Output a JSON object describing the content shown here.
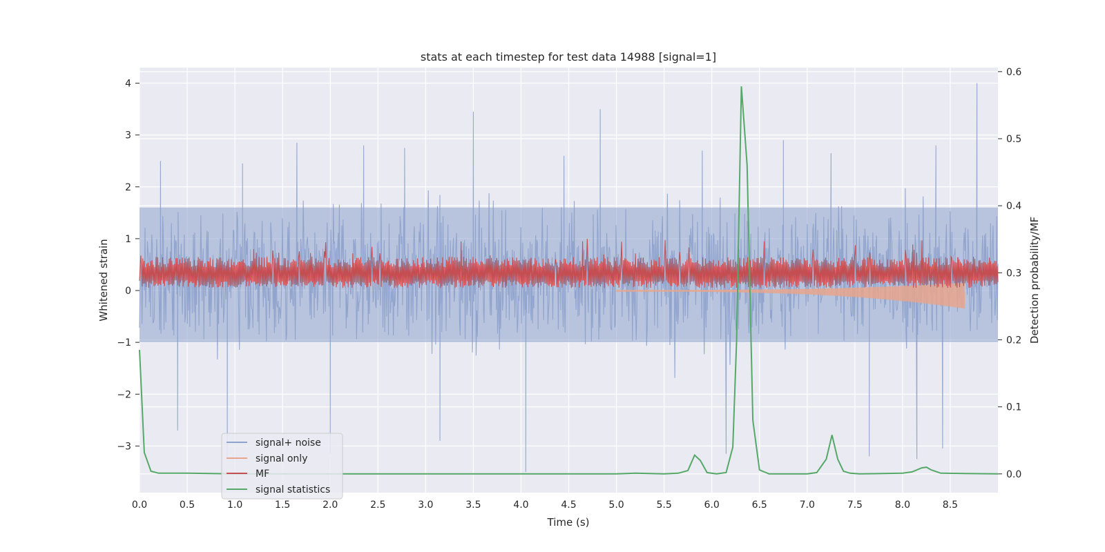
{
  "chart_data": {
    "type": "line",
    "title": "stats at each timestep for test data 14988 [signal=1]",
    "xlabel": "Time (s)",
    "ylabel": "Whitened strain",
    "y2label": "Detection probability/MF",
    "xlim": [
      0,
      9.0
    ],
    "ylim": [
      -3.9,
      4.3
    ],
    "y2lim": [
      -0.028,
      0.606
    ],
    "x_ticks": [
      "0.0",
      "0.5",
      "1.0",
      "1.5",
      "2.0",
      "2.5",
      "3.0",
      "3.5",
      "4.0",
      "4.5",
      "5.0",
      "5.5",
      "6.0",
      "6.5",
      "7.0",
      "7.5",
      "8.0",
      "8.5"
    ],
    "y_ticks": [
      "4",
      "3",
      "2",
      "1",
      "0",
      "−1",
      "−2",
      "−3"
    ],
    "y2_ticks": [
      "0.6",
      "0.5",
      "0.4",
      "0.3",
      "0.2",
      "0.1",
      "0.0"
    ],
    "grid": true,
    "legend_position": "lower-left",
    "colors": {
      "background": "#eaeaf2",
      "signal_noise": "#8ea3cc",
      "signal_only": "#e8a48c",
      "mf": "#c44e52",
      "statistics": "#55a868"
    },
    "series": [
      {
        "name": "signal+ noise",
        "axis": "left",
        "envelope": {
          "x_range": [
            0,
            9.0
          ],
          "typical_low": -1.0,
          "typical_high": 1.6,
          "peaks": [
            {
              "x": 0.22,
              "y": 2.5
            },
            {
              "x": 1.08,
              "y": 2.45
            },
            {
              "x": 1.65,
              "y": 2.85
            },
            {
              "x": 2.35,
              "y": 2.8
            },
            {
              "x": 2.78,
              "y": 2.75
            },
            {
              "x": 3.5,
              "y": 3.45
            },
            {
              "x": 4.45,
              "y": 2.6
            },
            {
              "x": 4.83,
              "y": 3.5
            },
            {
              "x": 5.9,
              "y": 2.7
            },
            {
              "x": 6.75,
              "y": 2.9
            },
            {
              "x": 7.25,
              "y": 2.65
            },
            {
              "x": 8.35,
              "y": 2.8
            },
            {
              "x": 8.78,
              "y": 4.0
            }
          ],
          "troughs": [
            {
              "x": 0.4,
              "y": -2.7
            },
            {
              "x": 0.92,
              "y": -3.25
            },
            {
              "x": 2.0,
              "y": -3.15
            },
            {
              "x": 3.15,
              "y": -2.9
            },
            {
              "x": 4.05,
              "y": -3.5
            },
            {
              "x": 6.15,
              "y": -3.15
            },
            {
              "x": 7.65,
              "y": -3.2
            },
            {
              "x": 8.15,
              "y": -3.25
            },
            {
              "x": 8.42,
              "y": -3.05
            }
          ]
        }
      },
      {
        "name": "signal only",
        "axis": "left",
        "chirp": {
          "x_range": [
            5.0,
            8.65
          ],
          "amplitude_start": 0.03,
          "amplitude_end": 0.5
        }
      },
      {
        "name": "MF",
        "axis": "left",
        "band": {
          "x_range": [
            0,
            9.0
          ],
          "typical_low": 0.05,
          "typical_high": 0.6,
          "peak_high": 1.0
        }
      },
      {
        "name": "signal statistics",
        "axis": "right",
        "x": [
          0.0,
          0.05,
          0.12,
          0.2,
          0.5,
          1.0,
          2.0,
          3.0,
          4.0,
          5.0,
          5.2,
          5.5,
          5.65,
          5.75,
          5.82,
          5.88,
          5.95,
          6.05,
          6.15,
          6.22,
          6.26,
          6.31,
          6.37,
          6.43,
          6.5,
          6.6,
          7.0,
          7.1,
          7.2,
          7.26,
          7.32,
          7.38,
          7.45,
          7.55,
          8.0,
          8.1,
          8.2,
          8.25,
          8.3,
          8.4,
          9.0
        ],
        "y": [
          0.185,
          0.032,
          0.004,
          0.001,
          0.001,
          0.0,
          0.0,
          0.0,
          0.0,
          0.0,
          0.001,
          0.0,
          0.001,
          0.005,
          0.028,
          0.02,
          0.002,
          0.0,
          0.002,
          0.04,
          0.2,
          0.578,
          0.46,
          0.08,
          0.006,
          0.0,
          0.0,
          0.002,
          0.022,
          0.058,
          0.022,
          0.004,
          0.001,
          0.0,
          0.001,
          0.003,
          0.009,
          0.01,
          0.006,
          0.001,
          0.0
        ]
      }
    ]
  }
}
